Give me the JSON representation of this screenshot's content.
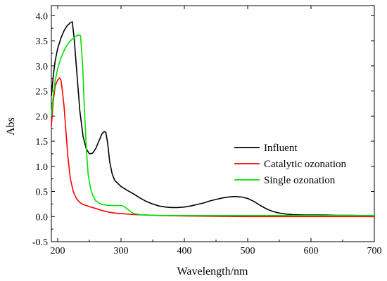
{
  "chart_data": {
    "type": "line",
    "title": "",
    "xlabel": "Wavelength/nm",
    "ylabel": "Abs",
    "xlim": [
      190,
      700
    ],
    "ylim": [
      -0.5,
      4.2
    ],
    "xticks": [
      200,
      300,
      400,
      500,
      600,
      700
    ],
    "yticks": [
      -0.5,
      0.0,
      0.5,
      1.0,
      1.5,
      2.0,
      2.5,
      3.0,
      3.5,
      4.0
    ],
    "xtick_labels": [
      "200",
      "300",
      "400",
      "500",
      "600",
      "700"
    ],
    "ytick_labels": [
      "-0.5",
      "0.0",
      "0.5",
      "1.0",
      "1.5",
      "2.0",
      "2.5",
      "3.0",
      "3.5",
      "4.0"
    ],
    "grid": false,
    "legend_position": "right-middle",
    "series": [
      {
        "name": "Influent",
        "color": "#000000",
        "x": [
          190,
          193,
          196,
          200,
          205,
          210,
          215,
          220,
          223,
          226,
          230,
          235,
          240,
          245,
          250,
          255,
          260,
          265,
          270,
          273,
          276,
          279,
          282,
          286,
          290,
          300,
          310,
          320,
          330,
          340,
          350,
          360,
          370,
          380,
          390,
          400,
          410,
          420,
          430,
          440,
          450,
          460,
          470,
          480,
          490,
          500,
          510,
          520,
          530,
          540,
          550,
          560,
          570,
          580,
          590,
          600,
          620,
          640,
          660,
          680,
          700
        ],
        "y": [
          2.4,
          2.8,
          3.1,
          3.35,
          3.55,
          3.7,
          3.8,
          3.86,
          3.88,
          3.55,
          2.9,
          2.1,
          1.6,
          1.35,
          1.25,
          1.26,
          1.35,
          1.5,
          1.65,
          1.69,
          1.68,
          1.45,
          1.1,
          0.85,
          0.72,
          0.6,
          0.52,
          0.45,
          0.37,
          0.3,
          0.25,
          0.21,
          0.19,
          0.18,
          0.18,
          0.19,
          0.21,
          0.24,
          0.27,
          0.31,
          0.34,
          0.37,
          0.39,
          0.4,
          0.39,
          0.36,
          0.3,
          0.22,
          0.15,
          0.1,
          0.07,
          0.05,
          0.04,
          0.035,
          0.03,
          0.03,
          0.03,
          0.025,
          0.025,
          0.02,
          0.02
        ]
      },
      {
        "name": "Catalytic ozonation",
        "color": "#ff0000",
        "x": [
          190,
          193,
          196,
          200,
          203,
          205,
          207,
          210,
          213,
          216,
          220,
          225,
          230,
          235,
          240,
          250,
          260,
          270,
          280,
          290,
          300,
          320,
          340,
          360,
          400,
          450,
          500,
          550,
          600,
          650,
          700
        ],
        "y": [
          1.8,
          2.3,
          2.6,
          2.72,
          2.76,
          2.72,
          2.55,
          2.2,
          1.7,
          1.2,
          0.75,
          0.48,
          0.35,
          0.28,
          0.24,
          0.2,
          0.16,
          0.12,
          0.09,
          0.07,
          0.06,
          0.04,
          0.03,
          0.02,
          0.01,
          0.005,
          0.0,
          0.0,
          0.0,
          0.0,
          0.0
        ]
      },
      {
        "name": "Single ozonation",
        "color": "#00e000",
        "x": [
          190,
          193,
          196,
          200,
          205,
          210,
          215,
          220,
          225,
          230,
          233,
          236,
          239,
          242,
          245,
          248,
          252,
          256,
          260,
          265,
          270,
          280,
          290,
          300,
          305,
          310,
          315,
          320,
          330,
          340,
          360,
          400,
          450,
          500,
          550,
          600,
          650,
          700
        ],
        "y": [
          2.0,
          2.4,
          2.7,
          2.95,
          3.15,
          3.3,
          3.42,
          3.5,
          3.55,
          3.6,
          3.62,
          3.6,
          3.1,
          2.2,
          1.4,
          0.85,
          0.55,
          0.4,
          0.32,
          0.27,
          0.24,
          0.22,
          0.22,
          0.22,
          0.2,
          0.15,
          0.1,
          0.06,
          0.04,
          0.03,
          0.02,
          0.02,
          0.02,
          0.02,
          0.02,
          0.02,
          0.02,
          0.02
        ]
      }
    ]
  }
}
